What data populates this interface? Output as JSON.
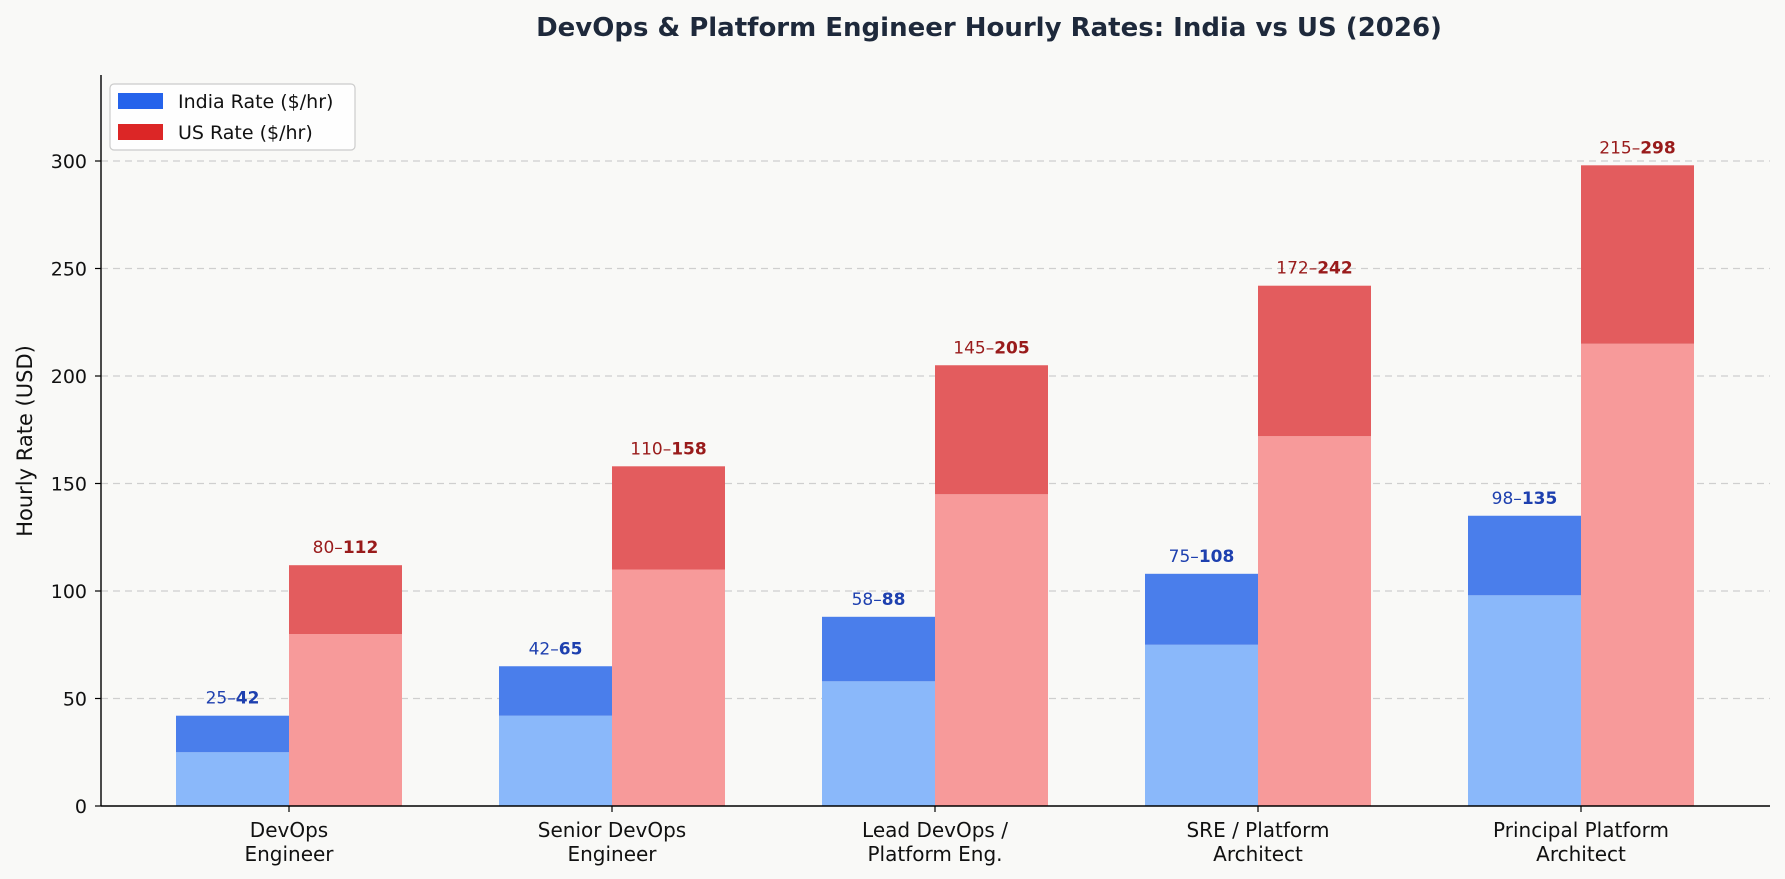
{
  "chart_data": {
    "type": "bar",
    "title": "DevOps & Platform Engineer Hourly Rates: India vs US (2026)",
    "xlabel": "",
    "ylabel": "Hourly Rate (USD)",
    "ylim": [
      0,
      340
    ],
    "yticks": [
      0,
      50,
      100,
      150,
      200,
      250,
      300
    ],
    "grid": true,
    "legend_position": "top-left",
    "categories": [
      [
        "DevOps",
        "Engineer"
      ],
      [
        "Senior DevOps",
        "Engineer"
      ],
      [
        "Lead DevOps /",
        "Platform Eng."
      ],
      [
        "SRE / Platform",
        "Architect"
      ],
      [
        "Principal Platform",
        "Architect"
      ]
    ],
    "series": [
      {
        "name": "India Rate ($/hr)",
        "low": [
          25,
          42,
          58,
          75,
          98
        ],
        "high": [
          42,
          65,
          88,
          108,
          135
        ],
        "color_low": "#8ab8fa",
        "color_high": "#4a7eeb",
        "legend_color": "#2563eb",
        "label_color": "#1e40af"
      },
      {
        "name": "US Rate ($/hr)",
        "low": [
          80,
          110,
          145,
          172,
          215
        ],
        "high": [
          112,
          158,
          205,
          242,
          298
        ],
        "color_low": "#f79a9a",
        "color_high": "#e35c5e",
        "legend_color": "#dc2626",
        "label_color": "#991b1b"
      }
    ],
    "range_separator": "–"
  }
}
